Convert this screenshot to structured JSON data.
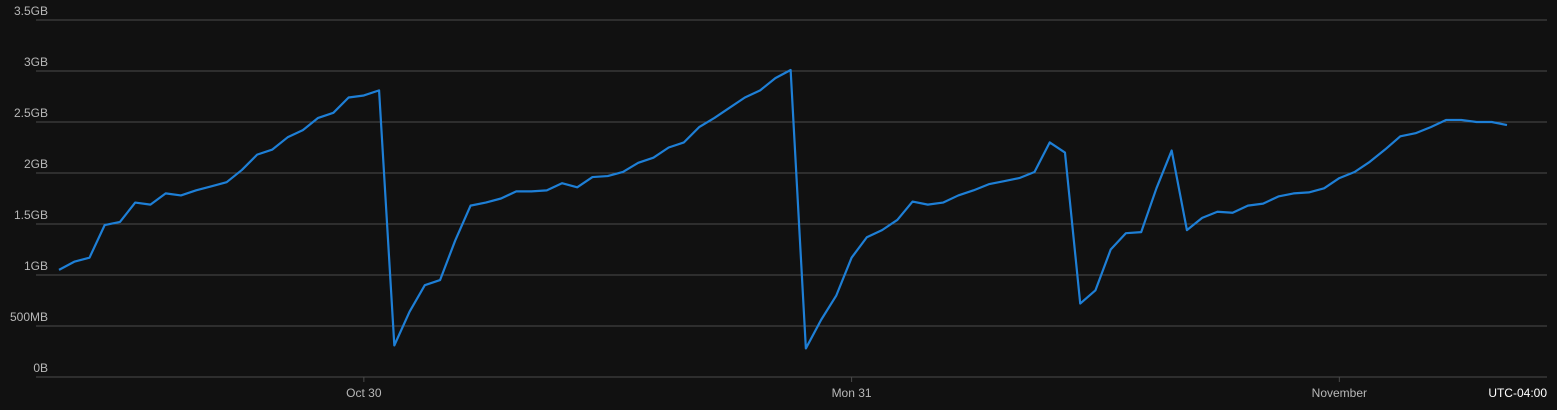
{
  "chart_data": {
    "type": "line",
    "categories": [
      null,
      null,
      null,
      null,
      null,
      null,
      null,
      null,
      null,
      null,
      null,
      null,
      null,
      null,
      null,
      null,
      null,
      null,
      null,
      null,
      "Oct 30",
      null,
      null,
      null,
      null,
      null,
      null,
      null,
      null,
      null,
      null,
      null,
      null,
      null,
      null,
      null,
      null,
      null,
      null,
      null,
      null,
      null,
      null,
      null,
      null,
      null,
      null,
      null,
      null,
      null,
      null,
      null,
      "Mon 31",
      null,
      null,
      null,
      null,
      null,
      null,
      null,
      null,
      null,
      null,
      null,
      null,
      null,
      null,
      null,
      null,
      null,
      null,
      null,
      null,
      null,
      null,
      null,
      null,
      null,
      null,
      null,
      null,
      null,
      null,
      null,
      "November",
      null,
      null,
      null,
      null,
      null,
      null,
      null,
      null,
      null,
      null,
      null
    ],
    "series": [
      {
        "color": "#1e7fd6",
        "values": [
          1.05,
          1.13,
          1.17,
          1.49,
          1.52,
          1.71,
          1.69,
          1.8,
          1.78,
          1.83,
          1.87,
          1.91,
          2.03,
          2.18,
          2.23,
          2.35,
          2.42,
          2.54,
          2.59,
          2.74,
          2.76,
          2.81,
          0.31,
          0.64,
          0.9,
          0.95,
          1.34,
          1.68,
          1.71,
          1.75,
          1.82,
          1.82,
          1.83,
          1.9,
          1.86,
          1.96,
          1.97,
          2.01,
          2.1,
          2.15,
          2.25,
          2.3,
          2.45,
          2.54,
          2.64,
          2.74,
          2.81,
          2.93,
          3.01,
          0.28,
          0.56,
          0.8,
          1.17,
          1.37,
          1.44,
          1.54,
          1.72,
          1.69,
          1.71,
          1.78,
          1.83,
          1.89,
          1.92,
          1.95,
          2.01,
          2.3,
          2.2,
          0.72,
          0.85,
          1.25,
          1.41,
          1.42,
          1.85,
          2.22,
          1.44,
          1.56,
          1.62,
          1.61,
          1.68,
          1.7,
          1.77,
          1.8,
          1.81,
          1.85,
          1.95,
          2.01,
          2.11,
          2.23,
          2.36,
          2.39,
          2.45,
          2.52,
          2.52,
          2.5,
          2.5,
          2.47
        ]
      }
    ],
    "ylim": [
      0,
      3.5
    ],
    "yticks": [
      {
        "value": 0,
        "label": "0B"
      },
      {
        "value": 0.5,
        "label": "500MB"
      },
      {
        "value": 1,
        "label": "1GB"
      },
      {
        "value": 1.5,
        "label": "1.5GB"
      },
      {
        "value": 2,
        "label": "2GB"
      },
      {
        "value": 2.5,
        "label": "2.5GB"
      },
      {
        "value": 3,
        "label": "3GB"
      },
      {
        "value": 3.5,
        "label": "3.5GB"
      }
    ],
    "grid": true,
    "timezone": "UTC-04:00"
  }
}
